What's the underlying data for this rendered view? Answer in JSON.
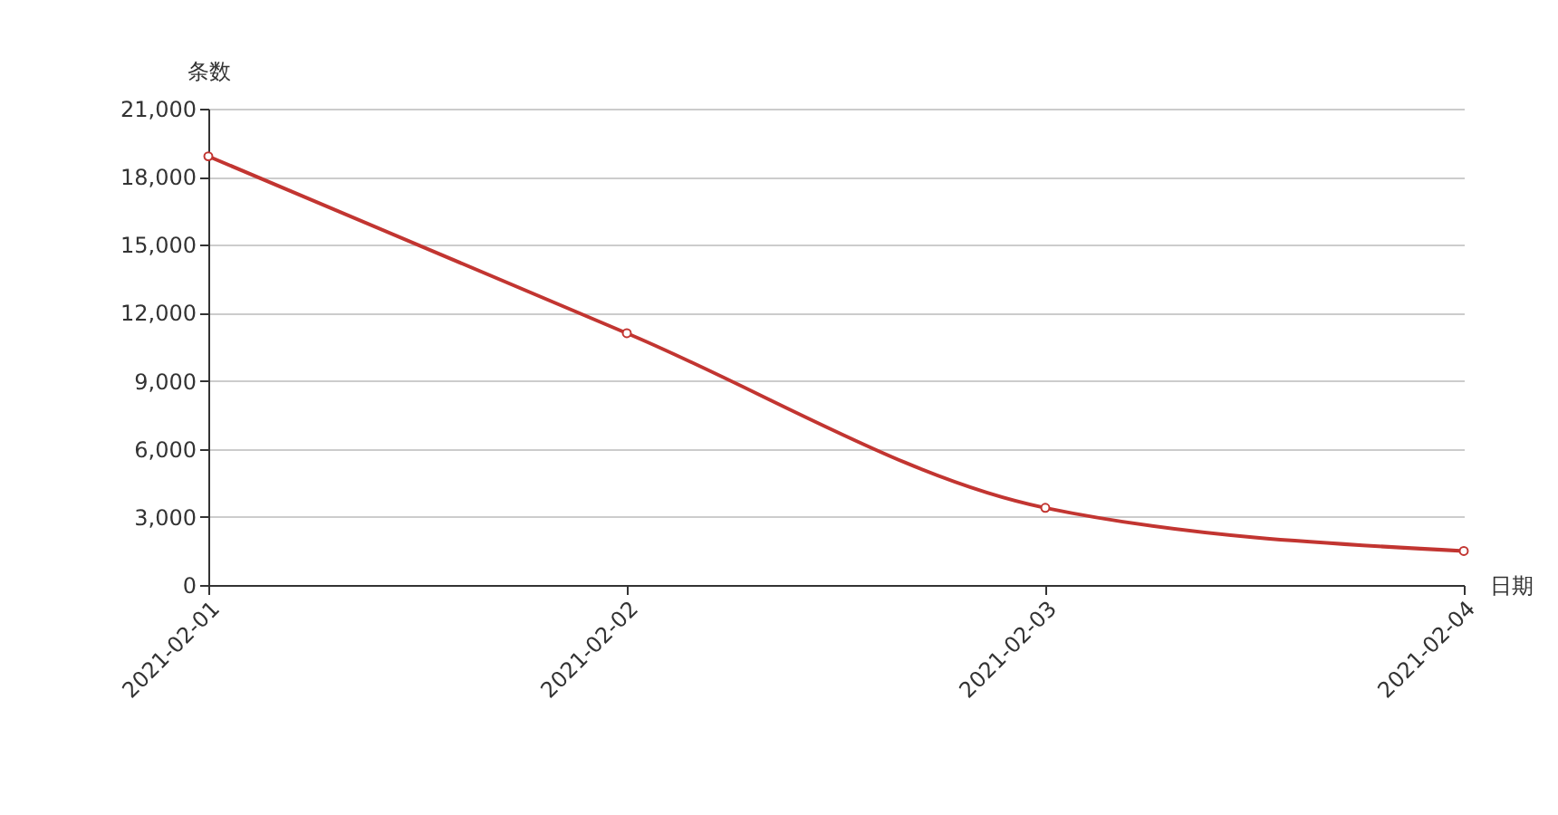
{
  "chart_data": {
    "type": "line",
    "xlabel": "日期",
    "ylabel": "条数",
    "categories": [
      "2021-02-01",
      "2021-02-02",
      "2021-02-03",
      "2021-02-04"
    ],
    "series": [
      {
        "color": "#c23531",
        "values": [
          18900,
          11100,
          3400,
          1500
        ]
      }
    ],
    "ylim": [
      0,
      21000
    ],
    "yticks": [
      0,
      {
        "value": 3000,
        "label": "3,000"
      },
      {
        "value": 6000,
        "label": "6,000"
      },
      {
        "value": 9000,
        "label": "9,000"
      },
      {
        "value": 12000,
        "label": "12,000"
      },
      {
        "value": 15000,
        "label": "15,000"
      },
      {
        "value": 18000,
        "label": "18,000"
      },
      {
        "value": 21000,
        "label": "21,000"
      }
    ],
    "grid": "y",
    "marker": "circle",
    "line_style": "solid"
  }
}
